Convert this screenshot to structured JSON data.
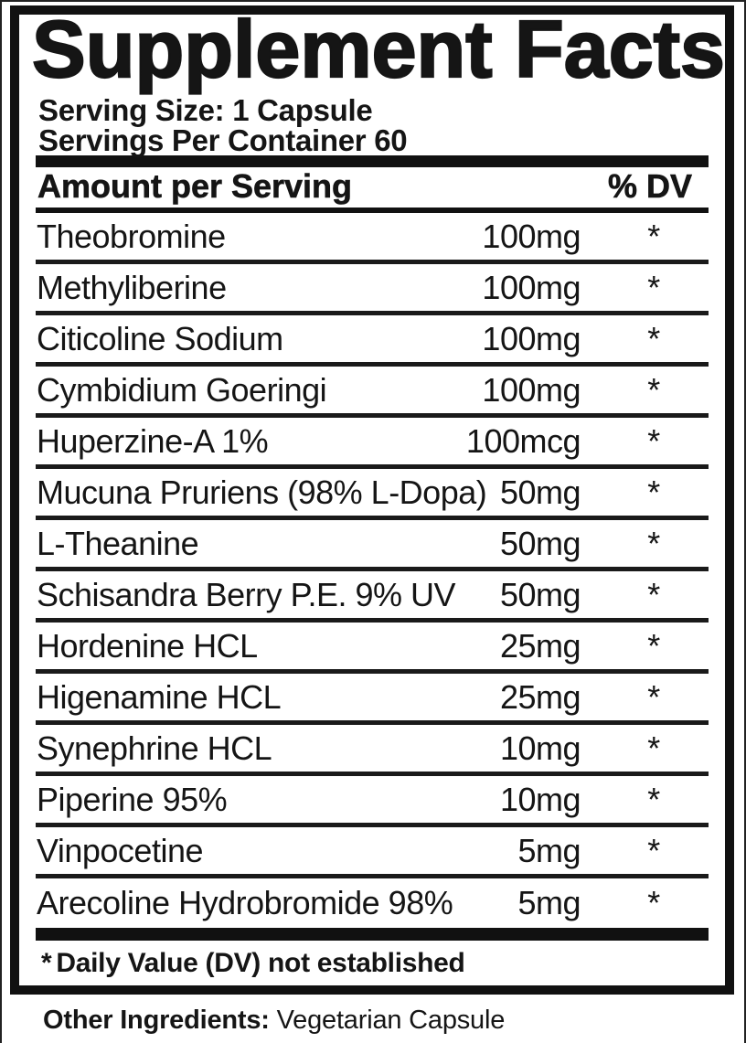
{
  "title": "Supplement Facts",
  "serving": {
    "size": "Serving Size: 1 Capsule",
    "per_container": "Servings Per Container 60"
  },
  "table": {
    "header": {
      "amount_col": "Amount per Serving",
      "dv_col": "% DV"
    },
    "rows": [
      {
        "name": "Theobromine",
        "amount": "100mg",
        "dv": "*"
      },
      {
        "name": "Methyliberine",
        "amount": "100mg",
        "dv": "*"
      },
      {
        "name": "Citicoline Sodium",
        "amount": "100mg",
        "dv": "*"
      },
      {
        "name": "Cymbidium Goeringi",
        "amount": "100mg",
        "dv": "*"
      },
      {
        "name": "Huperzine-A 1%",
        "amount": "100mcg",
        "dv": "*"
      },
      {
        "name": "Mucuna Pruriens (98% L-Dopa)",
        "amount": "50mg",
        "dv": "*"
      },
      {
        "name": "L-Theanine",
        "amount": "50mg",
        "dv": "*"
      },
      {
        "name": "Schisandra Berry P.E. 9% UV",
        "amount": "50mg",
        "dv": "*"
      },
      {
        "name": "Hordenine HCL",
        "amount": "25mg",
        "dv": "*"
      },
      {
        "name": "Higenamine HCL",
        "amount": "25mg",
        "dv": "*"
      },
      {
        "name": "Synephrine HCL",
        "amount": "10mg",
        "dv": "*"
      },
      {
        "name": "Piperine 95%",
        "amount": "10mg",
        "dv": "*"
      },
      {
        "name": "Vinpocetine",
        "amount": "5mg",
        "dv": "*"
      },
      {
        "name": "Arecoline Hydrobromide 98%",
        "amount": "5mg",
        "dv": "*"
      }
    ],
    "footnote_marker": "*",
    "footnote_text": "Daily Value (DV) not established"
  },
  "other_ingredients": {
    "label": "Other Ingredients:",
    "value": "Vegetarian Capsule"
  },
  "colors": {
    "ink": "#151515",
    "background": "#ffffff"
  }
}
